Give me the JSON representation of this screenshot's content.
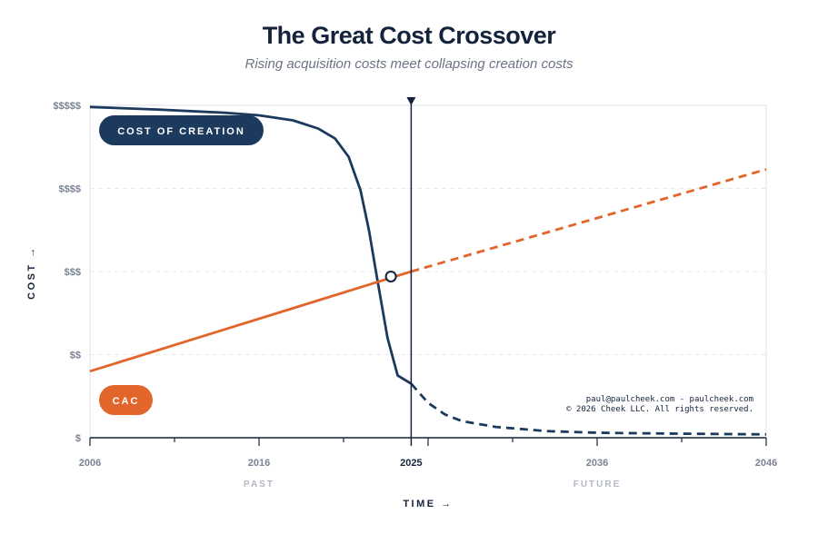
{
  "title": "The Great Cost Crossover",
  "subtitle": "Rising acquisition costs meet collapsing creation costs",
  "credit_line1": "paul@paulcheek.com - paulcheek.com",
  "credit_line2": "© 2026 Cheek LLC. All rights reserved.",
  "colors": {
    "creation": "#1c3a5e",
    "cac": "#e2652b",
    "axis": "#14233b",
    "grid": "#e6e8ec"
  },
  "chart_data": {
    "type": "line",
    "title": "The Great Cost Crossover",
    "subtitle": "Rising acquisition costs meet collapsing creation costs",
    "xlabel": "TIME →",
    "ylabel": "COST →",
    "xlim": [
      2006,
      2046
    ],
    "ylim": [
      0,
      4
    ],
    "x_ticks": [
      2006,
      2016,
      2025,
      2036,
      2046
    ],
    "y_ticks": [
      {
        "value": 0,
        "label": "$"
      },
      {
        "value": 1,
        "label": "$$"
      },
      {
        "value": 2,
        "label": "$$$"
      },
      {
        "value": 3,
        "label": "$$$$"
      },
      {
        "value": 4,
        "label": "$$$$$"
      }
    ],
    "eras": [
      {
        "label": "PAST",
        "at": 2016
      },
      {
        "label": "FUTURE",
        "at": 2036
      }
    ],
    "marker_year": 2025,
    "marker_year_label": "2025",
    "grid": "horizontal dashed",
    "series": [
      {
        "name": "COST OF CREATION",
        "color": "#1c3a5e",
        "solid_until": 2025,
        "points": [
          [
            2006,
            3.98
          ],
          [
            2010,
            3.95
          ],
          [
            2014,
            3.91
          ],
          [
            2016,
            3.88
          ],
          [
            2018,
            3.82
          ],
          [
            2019.5,
            3.72
          ],
          [
            2020.5,
            3.6
          ],
          [
            2021.3,
            3.38
          ],
          [
            2022,
            2.98
          ],
          [
            2022.5,
            2.5
          ],
          [
            2023,
            1.9
          ],
          [
            2023.6,
            1.2
          ],
          [
            2024.2,
            0.75
          ],
          [
            2025,
            0.65
          ],
          [
            2026,
            0.42
          ],
          [
            2027,
            0.28
          ],
          [
            2028,
            0.2
          ],
          [
            2030,
            0.13
          ],
          [
            2033,
            0.08
          ],
          [
            2036,
            0.06
          ],
          [
            2040,
            0.05
          ],
          [
            2046,
            0.04
          ]
        ]
      },
      {
        "name": "CAC",
        "color": "#e2652b",
        "solid_until": 2025,
        "points": [
          [
            2006,
            0.8
          ],
          [
            2025,
            2.0
          ],
          [
            2046,
            3.23
          ]
        ]
      }
    ],
    "annotations": [
      {
        "type": "crossover-point",
        "x": 2023.8,
        "y": 1.94
      }
    ]
  }
}
